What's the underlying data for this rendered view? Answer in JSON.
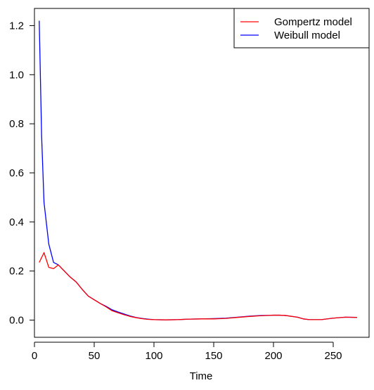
{
  "chart_data": {
    "type": "line",
    "title": "",
    "xlabel": "Time",
    "ylabel": "",
    "xlim": [
      0,
      280
    ],
    "ylim": [
      -0.07,
      1.27
    ],
    "xticks": [
      0,
      50,
      100,
      150,
      200,
      250
    ],
    "yticks": [
      0.0,
      0.2,
      0.4,
      0.6,
      0.8,
      1.0,
      1.2
    ],
    "xtick_labels": [
      "0",
      "50",
      "100",
      "150",
      "200",
      "250"
    ],
    "ytick_labels": [
      "0.0",
      "0.2",
      "0.4",
      "0.6",
      "0.8",
      "1.0",
      "1.2"
    ],
    "grid": false,
    "legend": {
      "placement": "top-right",
      "entries": [
        "Gompertz model",
        "Weibull model"
      ]
    },
    "series": [
      {
        "name": "Gompertz model",
        "color": "#ff0000",
        "x": [
          4,
          8,
          12,
          16,
          20,
          25,
          30,
          35,
          40,
          45,
          50,
          55,
          60,
          65,
          70,
          75,
          80,
          85,
          90,
          95,
          100,
          110,
          120,
          130,
          140,
          150,
          160,
          170,
          180,
          190,
          200,
          205,
          210,
          220,
          225,
          230,
          240,
          250,
          260,
          270
        ],
        "y": [
          0.235,
          0.275,
          0.215,
          0.21,
          0.225,
          0.2,
          0.175,
          0.155,
          0.125,
          0.098,
          0.083,
          0.068,
          0.054,
          0.038,
          0.03,
          0.022,
          0.015,
          0.01,
          0.006,
          0.003,
          0.002,
          0.001,
          0.002,
          0.004,
          0.005,
          0.005,
          0.007,
          0.011,
          0.015,
          0.018,
          0.02,
          0.02,
          0.019,
          0.012,
          0.005,
          0.002,
          0.002,
          0.008,
          0.012,
          0.011
        ]
      },
      {
        "name": "Weibull model",
        "color": "#0000ff",
        "x": [
          4,
          6,
          8,
          12,
          16,
          20,
          25,
          30,
          35,
          40,
          45,
          50,
          55,
          60,
          65,
          70,
          75,
          80,
          85,
          90,
          95,
          100,
          110,
          120,
          130,
          140,
          150,
          160,
          170,
          180,
          190,
          200,
          205,
          210,
          220,
          225,
          230,
          240,
          250,
          260,
          270
        ],
        "y": [
          1.22,
          0.75,
          0.48,
          0.31,
          0.235,
          0.225,
          0.2,
          0.175,
          0.155,
          0.125,
          0.098,
          0.083,
          0.068,
          0.056,
          0.042,
          0.033,
          0.025,
          0.017,
          0.011,
          0.007,
          0.004,
          0.002,
          0.001,
          0.002,
          0.004,
          0.005,
          0.006,
          0.008,
          0.012,
          0.016,
          0.019,
          0.02,
          0.02,
          0.019,
          0.012,
          0.005,
          0.002,
          0.002,
          0.008,
          0.012,
          0.011
        ]
      }
    ]
  }
}
